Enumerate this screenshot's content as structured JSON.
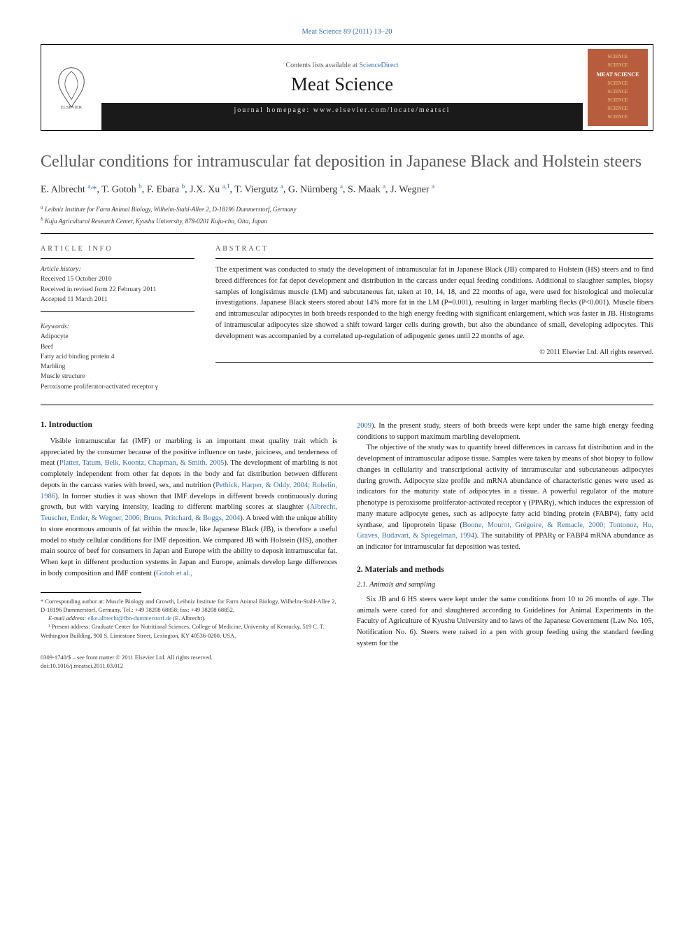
{
  "journal_ref": "Meat Science 89 (2011) 13–20",
  "header": {
    "contents_prefix": "Contents lists available at ",
    "contents_link": "ScienceDirect",
    "journal_title": "Meat Science",
    "homepage_prefix": "journal homepage: ",
    "homepage": "www.elsevier.com/locate/meatsci",
    "cover_lines": [
      "SCIENCE",
      "SCIENCE",
      "MEAT SCIENCE",
      "SCIENCE",
      "SCIENCE",
      "SCIENCE",
      "SCIENCE",
      "SCIENCE"
    ]
  },
  "title": "Cellular conditions for intramuscular fat deposition in Japanese Black and Holstein steers",
  "authors_html": "E. Albrecht <sup>a,</sup><span class='star'>*</span>, T. Gotoh <sup>b</sup>, F. Ebara <sup>b</sup>, J.X. Xu <sup>a,1</sup>, T. Viergutz <sup>a</sup>, G. Nürnberg <sup>a</sup>, S. Maak <sup>a</sup>, J. Wegner <sup>a</sup>",
  "affiliations": {
    "a": "Leibniz Institute for Farm Animal Biology, Wilhelm-Stahl-Allee 2, D-18196 Dummerstorf, Germany",
    "b": "Kuju Agricultural Research Center, Kyushu University, 878-0201 Kuju-cho, Oita, Japan"
  },
  "article_info_label": "ARTICLE INFO",
  "abstract_label": "ABSTRACT",
  "history": {
    "header": "Article history:",
    "received": "Received 15 October 2010",
    "revised": "Received in revised form 22 February 2011",
    "accepted": "Accepted 11 March 2011"
  },
  "keywords": {
    "header": "Keywords:",
    "items": [
      "Adipocyte",
      "Beef",
      "Fatty acid binding protein 4",
      "Marbling",
      "Muscle structure",
      "Peroxisome proliferator-activated receptor γ"
    ]
  },
  "abstract": "The experiment was conducted to study the development of intramuscular fat in Japanese Black (JB) compared to Holstein (HS) steers and to find breed differences for fat depot development and distribution in the carcass under equal feeding conditions. Additional to slaughter samples, biopsy samples of longissimus muscle (LM) and subcutaneous fat, taken at 10, 14, 18, and 22 months of age, were used for histological and molecular investigations. Japanese Black steers stored about 14% more fat in the LM (P=0.001), resulting in larger marbling flecks (P<0.001). Muscle fibers and intramuscular adipocytes in both breeds responded to the high energy feeding with significant enlargement, which was faster in JB. Histograms of intramuscular adipocytes size showed a shift toward larger cells during growth, but also the abundance of small, developing adipocytes. This development was accompanied by a correlated up-regulation of adipogenic genes until 22 months of age.",
  "copyright": "© 2011 Elsevier Ltd. All rights reserved.",
  "sections": {
    "intro_heading": "1. Introduction",
    "intro_p1_a": "Visible intramuscular fat (IMF) or marbling is an important meat quality trait which is appreciated by the consumer because of the positive influence on taste, juiciness, and tenderness of meat (",
    "intro_cite1": "Platter, Tatum, Belk, Koontz, Chapman, & Smith, 2005",
    "intro_p1_b": "). The development of marbling is not completely independent from other fat depots in the body and fat distribution between different depots in the carcass varies with breed, sex, and nutrition (",
    "intro_cite2": "Pethick, Harper, & Oddy, 2004; Robelin, 1986",
    "intro_p1_c": "). In former studies it was shown that IMF develops in different breeds continuously during growth, but with varying intensity, leading to different marbling scores at slaughter (",
    "intro_cite3": "Albrecht, Teuscher, Ender, & Wegner, 2006; Bruns, Pritchard, & Boggs, 2004",
    "intro_p1_d": "). A breed with the unique ability to store enormous amounts of fat within the muscle, like Japanese Black (JB), is therefore a useful model to study cellular conditions for IMF deposition. We compared JB with Holstein (HS), another main source of beef for consumers in Japan and Europe with the ability to deposit intramuscular fat. When kept in different production systems in Japan and Europe, animals develop large differences in body composition and IMF content (",
    "intro_cite4": "Gotoh et al.,",
    "col2_cite4b": "2009",
    "col2_p1": "). In the present study, steers of both breeds were kept under the same high energy feeding conditions to support maximum marbling development.",
    "col2_p2_a": "The objective of the study was to quantify breed differences in carcass fat distribution and in the development of intramuscular adipose tissue. Samples were taken by means of shot biopsy to follow changes in cellularity and transcriptional activity of intramuscular and subcutaneous adipocytes during growth. Adipocyte size profile and mRNA abundance of characteristic genes were used as indicators for the maturity state of adipocytes in a tissue. A powerful regulator of the mature phenotype is peroxisome proliferator-activated receptor γ (PPARγ), which induces the expression of many mature adipocyte genes, such as adipocyte fatty acid binding protein (FABP4), fatty acid synthase, and lipoprotein lipase (",
    "col2_cite5": "Boone, Mourot, Grégoire, & Remacle, 2000; Tontonoz, Hu, Graves, Budavari, & Spiegelman, 1994",
    "col2_p2_b": "). The suitability of PPARγ or FABP4 mRNA abundance as an indicator for intramuscular fat deposition was tested.",
    "mm_heading": "2. Materials and methods",
    "mm_sub": "2.1. Animals and sampling",
    "mm_p1": "Six JB and 6 HS steers were kept under the same conditions from 10 to 26 months of age. The animals were cared for and slaughtered according to Guidelines for Animal Experiments in the Faculty of Agriculture of Kyushu University and to laws of the Japanese Government (Law No. 105, Notification No. 6). Steers were raised in a pen with group feeding using the standard feeding system for the"
  },
  "footnotes": {
    "corr": "* Corresponding author at: Muscle Biology and Growth, Leibniz Institute for Farm Animal Biology, Wilhelm-Stahl-Allee 2, D-18196 Dummerstorf, Germany. Tel.: +49 38208 68858; fax: +49 38208 68852.",
    "email_label": "E-mail address: ",
    "email": "elke.albrecht@fbn-dummerstorf.de",
    "email_suffix": " (E. Albrecht).",
    "present": "¹ Present address: Graduate Center for Nutritional Sciences, College of Medicine, University of Kentucky, 519 C. T. Wethington Building, 900 S. Limestone Street, Lexington, KY 40536-0200, USA."
  },
  "bottom": {
    "line1": "0309-1740/$ – see front matter © 2011 Elsevier Ltd. All rights reserved.",
    "line2": "doi:10.1016/j.meatsci.2011.03.012"
  },
  "colors": {
    "link": "#3a6ea5",
    "title_gray": "#5a5a5a",
    "cover_bg": "#b85c3e",
    "cover_text": "#f0d080"
  }
}
